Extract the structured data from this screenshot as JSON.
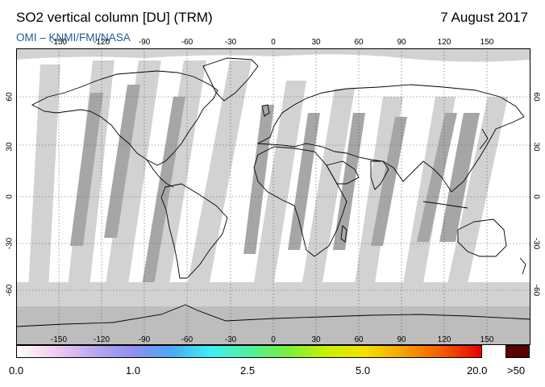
{
  "header": {
    "title": "SO2 vertical column [DU] (TRM)",
    "date": "7 August 2017",
    "source": "OMI  –  KNMI/FMI/NASA"
  },
  "map": {
    "projection": "equirectangular",
    "longitude_ticks": [
      "-150",
      "-120",
      "-90",
      "-60",
      "-30",
      "0",
      "30",
      "60",
      "90",
      "120",
      "150"
    ],
    "latitude_ticks": [
      "60",
      "30",
      "0",
      "-30",
      "-60"
    ],
    "latitude_ticks_right": [
      "60",
      "30",
      "0",
      "-30",
      "-60"
    ],
    "colors": {
      "ocean_background": "#ffffff",
      "no_data": "#d2d2d2",
      "polar_no_data": "#bdbdbd",
      "overlap_band": "#a6a6a6",
      "coastline": "#000000",
      "grid": "#555555"
    }
  },
  "colorbar": {
    "labels": [
      "0.0",
      "1.0",
      "2.5",
      "5.0",
      "20.0",
      ">50"
    ],
    "gradient_colors": [
      "#ffffff",
      "#f0ccf0",
      "#b8a8f0",
      "#8f8ff0",
      "#4aa8f5",
      "#3cf0f5",
      "#50f0a0",
      "#78f03c",
      "#c8f000",
      "#f5e100",
      "#f5a000",
      "#f55a00",
      "#e80000"
    ],
    "overflow_color": "#5a0000"
  }
}
